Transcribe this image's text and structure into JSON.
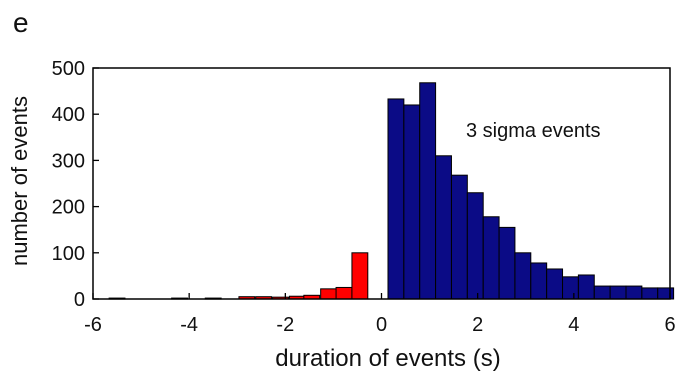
{
  "panel_label": "e",
  "chart_data": {
    "type": "bar",
    "xlabel": "duration of events (s)",
    "ylabel": "number of events",
    "xlim": [
      -6,
      6
    ],
    "ylim": [
      0,
      500
    ],
    "xticks": [
      -6,
      -4,
      -2,
      0,
      2,
      4,
      6
    ],
    "yticks": [
      0,
      100,
      200,
      300,
      400,
      500
    ],
    "bin_width": 0.33,
    "annotation": "3 sigma events",
    "grid": false,
    "colors": {
      "negative": "#ff0000",
      "positive": "#0b0b86",
      "edge": "#000000",
      "axis": "#000000"
    },
    "series": [
      {
        "color": "negative",
        "x": [
          -5.5,
          -4.2,
          -3.5,
          -2.8,
          -2.45,
          -2.1,
          -1.75,
          -1.45,
          -1.1,
          -0.78
        ],
        "values": [
          2,
          2,
          2,
          5,
          5,
          4,
          6,
          8,
          22,
          25
        ]
      },
      {
        "color": "negative",
        "x": [
          -0.45
        ],
        "values": [
          100
        ]
      },
      {
        "color": "positive",
        "x": [
          0.3,
          0.63,
          0.96,
          1.29,
          1.62,
          1.95,
          2.28,
          2.61,
          2.94,
          3.27,
          3.6,
          3.93,
          4.26,
          4.59,
          4.92,
          5.25,
          5.58,
          5.91
        ],
        "values": [
          433,
          420,
          468,
          310,
          268,
          230,
          178,
          155,
          100,
          78,
          65,
          48,
          52,
          28,
          28,
          28,
          24,
          24
        ]
      }
    ]
  }
}
